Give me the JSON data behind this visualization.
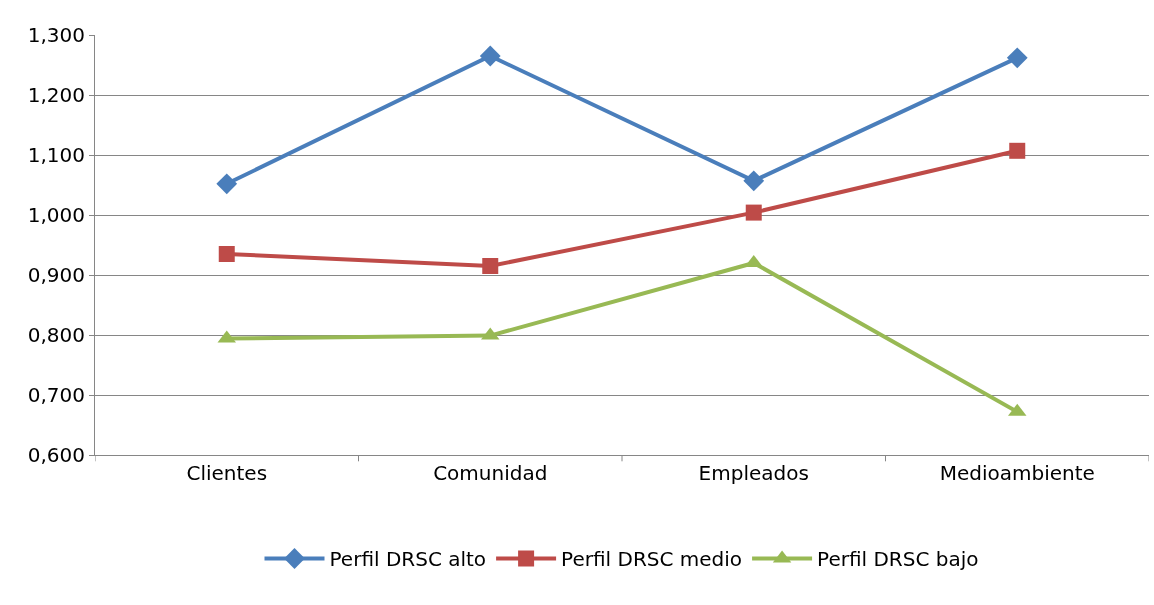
{
  "chart_data": {
    "type": "line",
    "categories": [
      "Clientes",
      "Comunidad",
      "Empleados",
      "Medioambiente"
    ],
    "series": [
      {
        "name": "Perfil DRSC alto",
        "color": "#4a7ebb",
        "marker": "diamond",
        "values": [
          1.052,
          1.265,
          1.057,
          1.262
        ]
      },
      {
        "name": "Perfil DRSC medio",
        "color": "#be4b48",
        "marker": "square",
        "values": [
          0.935,
          0.915,
          1.004,
          1.107
        ]
      },
      {
        "name": "Perfil DRSC bajo",
        "color": "#98b954",
        "marker": "triangle",
        "values": [
          0.794,
          0.799,
          0.92,
          0.672
        ]
      }
    ],
    "ylim": [
      0.6,
      1.3
    ],
    "yticks": [
      {
        "value": 0.6,
        "label": "0,600"
      },
      {
        "value": 0.7,
        "label": "0,700"
      },
      {
        "value": 0.8,
        "label": "0,800"
      },
      {
        "value": 0.9,
        "label": "0,900"
      },
      {
        "value": 1.0,
        "label": "1,000"
      },
      {
        "value": 1.1,
        "label": "1,100"
      },
      {
        "value": 1.2,
        "label": "1,200"
      },
      {
        "value": 1.3,
        "label": "1,300"
      }
    ],
    "grid": "y",
    "legend": "bottom",
    "line_style": "solid"
  }
}
